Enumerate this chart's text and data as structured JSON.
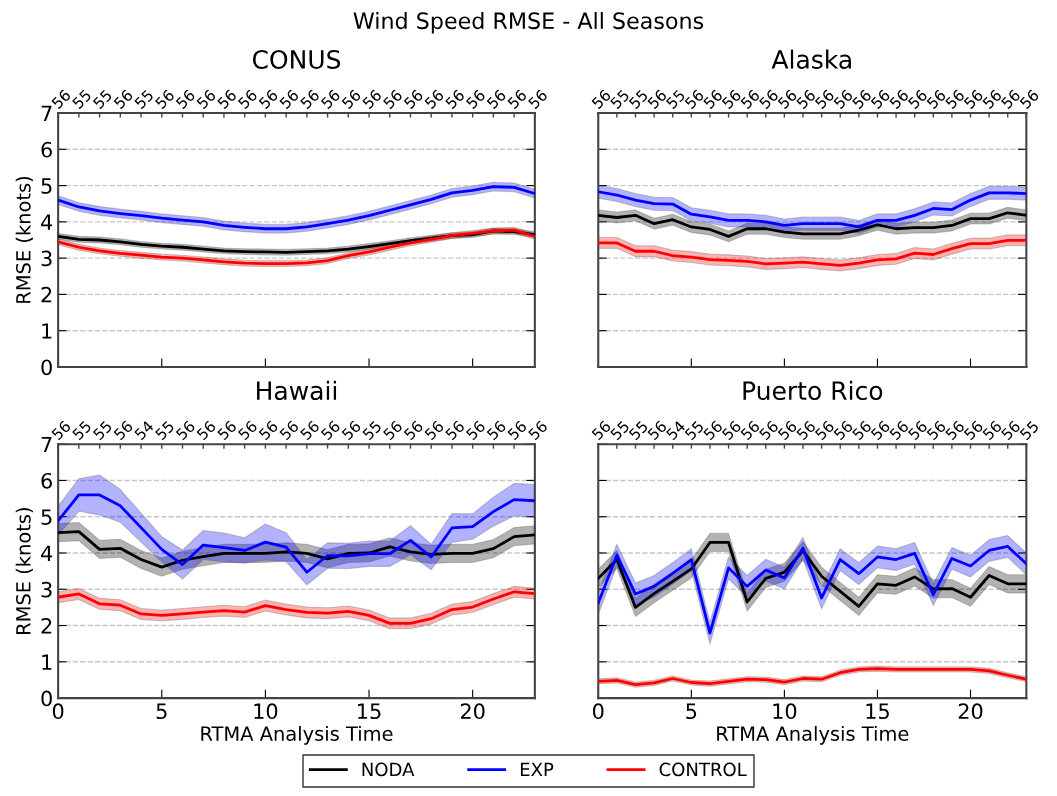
{
  "chart_data": [
    {
      "type": "line",
      "title": "CONUS",
      "ylabel": "RMSE (knots)",
      "x": [
        0,
        1,
        2,
        3,
        4,
        5,
        6,
        7,
        8,
        9,
        10,
        11,
        12,
        13,
        14,
        15,
        16,
        17,
        18,
        19,
        20,
        21,
        22,
        23
      ],
      "xlim": [
        0,
        23
      ],
      "xticks": [
        0,
        5,
        10,
        15,
        20
      ],
      "ylim": [
        0,
        7
      ],
      "yticks": [
        0,
        1,
        2,
        3,
        4,
        5,
        6,
        7
      ],
      "tick_labels": "y",
      "grid": "y",
      "annotations": [
        "Wind Speed RMSE - All Seasons",
        {
          "text": "56",
          "x": 0
        },
        {
          "text": "55",
          "x": 1
        },
        {
          "text": "55",
          "x": 2
        },
        {
          "text": "56",
          "x": 3
        },
        {
          "text": "55",
          "x": 4
        },
        {
          "text": "56",
          "x": 5
        },
        {
          "text": "56",
          "x": 6
        },
        {
          "text": "56",
          "x": 7
        },
        {
          "text": "56",
          "x": 8
        },
        {
          "text": "56",
          "x": 9
        },
        {
          "text": "56",
          "x": 10
        },
        {
          "text": "56",
          "x": 11
        },
        {
          "text": "56",
          "x": 12
        },
        {
          "text": "56",
          "x": 13
        },
        {
          "text": "56",
          "x": 14
        },
        {
          "text": "56",
          "x": 15
        },
        {
          "text": "56",
          "x": 16
        },
        {
          "text": "56",
          "x": 17
        },
        {
          "text": "56",
          "x": 18
        },
        {
          "text": "56",
          "x": 19
        },
        {
          "text": "56",
          "x": 20
        },
        {
          "text": "56",
          "x": 21
        },
        {
          "text": "56",
          "x": 22
        },
        {
          "text": "56",
          "x": 23
        }
      ],
      "series": [
        {
          "color": "#000000",
          "values": [
            3.6,
            3.52,
            3.5,
            3.45,
            3.38,
            3.33,
            3.3,
            3.25,
            3.2,
            3.18,
            3.17,
            3.16,
            3.18,
            3.2,
            3.25,
            3.32,
            3.4,
            3.48,
            3.55,
            3.62,
            3.65,
            3.75,
            3.73,
            3.65
          ],
          "lower": [
            3.52,
            3.44,
            3.42,
            3.37,
            3.3,
            3.25,
            3.22,
            3.17,
            3.12,
            3.1,
            3.09,
            3.08,
            3.1,
            3.12,
            3.17,
            3.24,
            3.32,
            3.4,
            3.47,
            3.54,
            3.57,
            3.67,
            3.65,
            3.57
          ],
          "upper": [
            3.68,
            3.6,
            3.58,
            3.53,
            3.46,
            3.41,
            3.38,
            3.33,
            3.28,
            3.26,
            3.25,
            3.24,
            3.26,
            3.28,
            3.33,
            3.4,
            3.48,
            3.56,
            3.63,
            3.7,
            3.73,
            3.83,
            3.81,
            3.73
          ]
        },
        {
          "color": "#0000ff",
          "values": [
            4.6,
            4.41,
            4.3,
            4.23,
            4.17,
            4.1,
            4.05,
            4.0,
            3.9,
            3.85,
            3.81,
            3.81,
            3.86,
            3.95,
            4.05,
            4.17,
            4.32,
            4.47,
            4.62,
            4.8,
            4.87,
            4.97,
            4.95,
            4.78
          ],
          "lower": [
            4.48,
            4.29,
            4.18,
            4.11,
            4.05,
            3.98,
            3.93,
            3.88,
            3.78,
            3.73,
            3.69,
            3.69,
            3.74,
            3.83,
            3.93,
            4.05,
            4.2,
            4.35,
            4.5,
            4.68,
            4.75,
            4.85,
            4.83,
            4.66
          ],
          "upper": [
            4.72,
            4.53,
            4.42,
            4.35,
            4.29,
            4.22,
            4.17,
            4.12,
            4.02,
            3.97,
            3.93,
            3.93,
            3.98,
            4.07,
            4.17,
            4.29,
            4.44,
            4.59,
            4.74,
            4.92,
            4.99,
            5.09,
            5.07,
            4.9
          ]
        },
        {
          "color": "#ff0000",
          "values": [
            3.45,
            3.3,
            3.2,
            3.13,
            3.08,
            3.03,
            3.0,
            2.95,
            2.9,
            2.86,
            2.85,
            2.85,
            2.87,
            2.93,
            3.07,
            3.17,
            3.3,
            3.42,
            3.52,
            3.62,
            3.68,
            3.75,
            3.77,
            3.6
          ],
          "lower": [
            3.37,
            3.22,
            3.12,
            3.05,
            3.0,
            2.95,
            2.92,
            2.87,
            2.82,
            2.78,
            2.77,
            2.77,
            2.79,
            2.85,
            2.99,
            3.09,
            3.22,
            3.34,
            3.44,
            3.54,
            3.6,
            3.67,
            3.69,
            3.52
          ],
          "upper": [
            3.53,
            3.38,
            3.28,
            3.21,
            3.16,
            3.11,
            3.08,
            3.03,
            2.98,
            2.94,
            2.93,
            2.93,
            2.95,
            3.01,
            3.15,
            3.25,
            3.38,
            3.5,
            3.6,
            3.7,
            3.76,
            3.83,
            3.85,
            3.68
          ]
        }
      ]
    },
    {
      "type": "line",
      "title": "Alaska",
      "x": [
        0,
        1,
        2,
        3,
        4,
        5,
        6,
        7,
        8,
        9,
        10,
        11,
        12,
        13,
        14,
        15,
        16,
        17,
        18,
        19,
        20,
        21,
        22,
        23
      ],
      "xlim": [
        0,
        23
      ],
      "xticks": [
        0,
        5,
        10,
        15,
        20
      ],
      "ylim": [
        0,
        7
      ],
      "yticks": [
        0,
        1,
        2,
        3,
        4,
        5,
        6,
        7
      ],
      "tick_labels": false,
      "grid": "y",
      "annotations": [
        {
          "text": "56",
          "x": 0
        },
        {
          "text": "55",
          "x": 1
        },
        {
          "text": "55",
          "x": 2
        },
        {
          "text": "56",
          "x": 3
        },
        {
          "text": "55",
          "x": 4
        },
        {
          "text": "56",
          "x": 5
        },
        {
          "text": "56",
          "x": 6
        },
        {
          "text": "56",
          "x": 7
        },
        {
          "text": "56",
          "x": 8
        },
        {
          "text": "56",
          "x": 9
        },
        {
          "text": "56",
          "x": 10
        },
        {
          "text": "56",
          "x": 11
        },
        {
          "text": "56",
          "x": 12
        },
        {
          "text": "56",
          "x": 13
        },
        {
          "text": "56",
          "x": 14
        },
        {
          "text": "56",
          "x": 15
        },
        {
          "text": "56",
          "x": 16
        },
        {
          "text": "56",
          "x": 17
        },
        {
          "text": "56",
          "x": 18
        },
        {
          "text": "56",
          "x": 19
        },
        {
          "text": "56",
          "x": 20
        },
        {
          "text": "56",
          "x": 21
        },
        {
          "text": "56",
          "x": 22
        },
        {
          "text": "56",
          "x": 23
        }
      ],
      "series": [
        {
          "color": "#000000",
          "values": [
            4.18,
            4.12,
            4.18,
            3.95,
            4.06,
            3.86,
            3.79,
            3.6,
            3.81,
            3.81,
            3.72,
            3.67,
            3.67,
            3.67,
            3.77,
            3.92,
            3.81,
            3.84,
            3.84,
            3.9,
            4.09,
            4.09,
            4.25,
            4.18
          ],
          "lower": [
            4.03,
            3.97,
            4.03,
            3.8,
            3.91,
            3.71,
            3.64,
            3.45,
            3.66,
            3.66,
            3.57,
            3.52,
            3.52,
            3.52,
            3.62,
            3.77,
            3.66,
            3.69,
            3.69,
            3.75,
            3.94,
            3.94,
            4.1,
            4.03
          ],
          "upper": [
            4.33,
            4.27,
            4.33,
            4.1,
            4.21,
            4.01,
            3.94,
            3.75,
            3.96,
            3.96,
            3.87,
            3.82,
            3.82,
            3.82,
            3.92,
            4.07,
            3.96,
            3.99,
            3.99,
            4.05,
            4.24,
            4.24,
            4.4,
            4.33
          ]
        },
        {
          "color": "#0000ff",
          "values": [
            4.83,
            4.74,
            4.6,
            4.5,
            4.49,
            4.21,
            4.14,
            4.04,
            4.04,
            4.0,
            3.9,
            3.95,
            3.95,
            3.95,
            3.86,
            4.04,
            4.04,
            4.18,
            4.37,
            4.34,
            4.6,
            4.8,
            4.8,
            4.78
          ],
          "lower": [
            4.65,
            4.56,
            4.42,
            4.32,
            4.31,
            4.03,
            3.96,
            3.86,
            3.86,
            3.82,
            3.72,
            3.77,
            3.77,
            3.77,
            3.68,
            3.86,
            3.86,
            4.0,
            4.19,
            4.16,
            4.42,
            4.62,
            4.62,
            4.6
          ],
          "upper": [
            5.01,
            4.92,
            4.78,
            4.68,
            4.67,
            4.39,
            4.32,
            4.22,
            4.22,
            4.18,
            4.08,
            4.13,
            4.13,
            4.13,
            4.04,
            4.22,
            4.22,
            4.36,
            4.55,
            4.52,
            4.78,
            4.98,
            4.98,
            4.96
          ]
        },
        {
          "color": "#ff0000",
          "values": [
            3.42,
            3.42,
            3.19,
            3.19,
            3.07,
            3.03,
            2.96,
            2.94,
            2.91,
            2.84,
            2.86,
            2.89,
            2.84,
            2.8,
            2.86,
            2.95,
            2.98,
            3.14,
            3.1,
            3.26,
            3.4,
            3.4,
            3.49,
            3.49
          ],
          "lower": [
            3.27,
            3.27,
            3.04,
            3.04,
            2.92,
            2.88,
            2.81,
            2.79,
            2.76,
            2.69,
            2.71,
            2.74,
            2.69,
            2.65,
            2.71,
            2.8,
            2.83,
            2.99,
            2.95,
            3.11,
            3.25,
            3.25,
            3.34,
            3.34
          ],
          "upper": [
            3.57,
            3.57,
            3.34,
            3.34,
            3.22,
            3.18,
            3.11,
            3.09,
            3.06,
            2.99,
            3.01,
            3.04,
            2.99,
            2.95,
            3.01,
            3.1,
            3.13,
            3.29,
            3.25,
            3.41,
            3.55,
            3.55,
            3.64,
            3.64
          ]
        }
      ]
    },
    {
      "type": "line",
      "title": "Hawaii",
      "xlabel": "RTMA Analysis Time",
      "ylabel": "RMSE (knots)",
      "x": [
        0,
        1,
        2,
        3,
        4,
        5,
        6,
        7,
        8,
        9,
        10,
        11,
        12,
        13,
        14,
        15,
        16,
        17,
        18,
        19,
        20,
        21,
        22,
        23
      ],
      "xlim": [
        0,
        23
      ],
      "xticks": [
        0,
        5,
        10,
        15,
        20
      ],
      "ylim": [
        0,
        7
      ],
      "yticks": [
        0,
        1,
        2,
        3,
        4,
        5,
        6,
        7
      ],
      "grid": "y",
      "annotations": [
        {
          "text": "56",
          "x": 0
        },
        {
          "text": "55",
          "x": 1
        },
        {
          "text": "55",
          "x": 2
        },
        {
          "text": "56",
          "x": 3
        },
        {
          "text": "54",
          "x": 4
        },
        {
          "text": "55",
          "x": 5
        },
        {
          "text": "56",
          "x": 6
        },
        {
          "text": "56",
          "x": 7
        },
        {
          "text": "56",
          "x": 8
        },
        {
          "text": "56",
          "x": 9
        },
        {
          "text": "56",
          "x": 10
        },
        {
          "text": "56",
          "x": 11
        },
        {
          "text": "56",
          "x": 12
        },
        {
          "text": "56",
          "x": 13
        },
        {
          "text": "56",
          "x": 14
        },
        {
          "text": "55",
          "x": 15
        },
        {
          "text": "56",
          "x": 16
        },
        {
          "text": "56",
          "x": 17
        },
        {
          "text": "56",
          "x": 18
        },
        {
          "text": "56",
          "x": 19
        },
        {
          "text": "56",
          "x": 20
        },
        {
          "text": "56",
          "x": 21
        },
        {
          "text": "56",
          "x": 22
        },
        {
          "text": "56",
          "x": 23
        }
      ],
      "series": [
        {
          "color": "#000000",
          "values": [
            4.56,
            4.59,
            4.1,
            4.13,
            3.82,
            3.61,
            3.8,
            3.9,
            3.99,
            3.99,
            3.99,
            4.03,
            3.99,
            3.84,
            3.99,
            4.0,
            4.17,
            4.03,
            3.96,
            3.99,
            3.99,
            4.12,
            4.45,
            4.5
          ],
          "lower": [
            4.31,
            4.34,
            3.85,
            3.88,
            3.57,
            3.36,
            3.55,
            3.65,
            3.74,
            3.74,
            3.74,
            3.78,
            3.74,
            3.59,
            3.74,
            3.75,
            3.92,
            3.78,
            3.71,
            3.74,
            3.74,
            3.87,
            4.2,
            4.25
          ],
          "upper": [
            4.81,
            4.84,
            4.35,
            4.38,
            4.07,
            3.86,
            4.05,
            4.15,
            4.24,
            4.24,
            4.24,
            4.28,
            4.24,
            4.09,
            4.24,
            4.25,
            4.42,
            4.28,
            4.21,
            4.24,
            4.24,
            4.37,
            4.7,
            4.75
          ]
        },
        {
          "color": "#0000ff",
          "values": [
            4.89,
            5.6,
            5.6,
            5.3,
            4.7,
            4.1,
            3.68,
            4.22,
            4.15,
            4.07,
            4.3,
            4.16,
            3.47,
            3.93,
            3.92,
            3.98,
            3.98,
            4.35,
            3.89,
            4.69,
            4.73,
            5.14,
            5.47,
            5.44
          ],
          "lower": [
            4.49,
            5.15,
            5.05,
            4.85,
            4.3,
            3.75,
            3.28,
            3.82,
            3.75,
            3.72,
            3.8,
            3.76,
            3.12,
            3.58,
            3.57,
            3.63,
            3.63,
            3.95,
            3.54,
            4.29,
            4.38,
            4.74,
            5.02,
            4.99
          ],
          "upper": [
            5.29,
            6.05,
            6.15,
            5.75,
            5.1,
            4.45,
            4.08,
            4.62,
            4.55,
            4.42,
            4.8,
            4.56,
            3.82,
            4.28,
            4.27,
            4.33,
            4.33,
            4.75,
            4.24,
            5.09,
            5.08,
            5.54,
            5.92,
            5.89
          ]
        },
        {
          "color": "#ff0000",
          "values": [
            2.78,
            2.87,
            2.6,
            2.56,
            2.32,
            2.28,
            2.32,
            2.37,
            2.41,
            2.37,
            2.55,
            2.44,
            2.36,
            2.34,
            2.39,
            2.28,
            2.06,
            2.06,
            2.19,
            2.44,
            2.51,
            2.73,
            2.93,
            2.88
          ],
          "lower": [
            2.63,
            2.72,
            2.45,
            2.41,
            2.17,
            2.13,
            2.17,
            2.22,
            2.26,
            2.22,
            2.4,
            2.29,
            2.21,
            2.19,
            2.24,
            2.13,
            1.91,
            1.91,
            2.04,
            2.29,
            2.36,
            2.58,
            2.78,
            2.73
          ],
          "upper": [
            2.93,
            3.02,
            2.75,
            2.71,
            2.47,
            2.43,
            2.47,
            2.52,
            2.56,
            2.52,
            2.7,
            2.59,
            2.51,
            2.49,
            2.54,
            2.43,
            2.21,
            2.21,
            2.34,
            2.59,
            2.66,
            2.88,
            3.08,
            3.03
          ]
        }
      ]
    },
    {
      "type": "line",
      "title": "Puerto Rico",
      "xlabel": "RTMA Analysis Time",
      "x": [
        0,
        1,
        2,
        3,
        4,
        5,
        6,
        7,
        8,
        9,
        10,
        11,
        12,
        13,
        14,
        15,
        16,
        17,
        18,
        19,
        20,
        21,
        22,
        23
      ],
      "xlim": [
        0,
        23
      ],
      "xticks": [
        0,
        5,
        10,
        15,
        20
      ],
      "ylim": [
        0,
        7
      ],
      "yticks": [
        0,
        1,
        2,
        3,
        4,
        5,
        6,
        7
      ],
      "tick_labels": "x",
      "grid": "y",
      "legend": "bottom",
      "annotations": [
        {
          "text": "56",
          "x": 0
        },
        {
          "text": "55",
          "x": 1
        },
        {
          "text": "55",
          "x": 2
        },
        {
          "text": "56",
          "x": 3
        },
        {
          "text": "54",
          "x": 4
        },
        {
          "text": "55",
          "x": 5
        },
        {
          "text": "56",
          "x": 6
        },
        {
          "text": "56",
          "x": 7
        },
        {
          "text": "56",
          "x": 8
        },
        {
          "text": "56",
          "x": 9
        },
        {
          "text": "56",
          "x": 10
        },
        {
          "text": "56",
          "x": 11
        },
        {
          "text": "56",
          "x": 12
        },
        {
          "text": "56",
          "x": 13
        },
        {
          "text": "56",
          "x": 14
        },
        {
          "text": "56",
          "x": 15
        },
        {
          "text": "56",
          "x": 16
        },
        {
          "text": "56",
          "x": 17
        },
        {
          "text": "56",
          "x": 18
        },
        {
          "text": "56",
          "x": 19
        },
        {
          "text": "56",
          "x": 20
        },
        {
          "text": "56",
          "x": 21
        },
        {
          "text": "56",
          "x": 22
        },
        {
          "text": "55",
          "x": 23
        }
      ],
      "series": [
        {
          "name": "NODA",
          "color": "#000000",
          "values": [
            3.3,
            3.82,
            2.5,
            2.88,
            3.22,
            3.56,
            4.29,
            4.29,
            2.65,
            3.3,
            3.47,
            4.06,
            3.36,
            2.94,
            2.53,
            3.15,
            3.11,
            3.34,
            3.01,
            3.02,
            2.78,
            3.38,
            3.15,
            3.15
          ],
          "lower": [
            3.05,
            3.57,
            2.25,
            2.63,
            2.97,
            3.31,
            4.04,
            4.04,
            2.4,
            3.05,
            3.22,
            3.81,
            3.11,
            2.69,
            2.28,
            2.9,
            2.86,
            3.09,
            2.76,
            2.77,
            2.53,
            3.13,
            2.9,
            2.9
          ],
          "upper": [
            3.55,
            4.07,
            2.75,
            3.13,
            3.47,
            3.81,
            4.54,
            4.54,
            2.9,
            3.55,
            3.72,
            4.31,
            3.61,
            3.19,
            2.78,
            3.4,
            3.36,
            3.59,
            3.26,
            3.27,
            3.03,
            3.63,
            3.4,
            3.4
          ]
        },
        {
          "name": "EXP",
          "color": "#0000ff",
          "values": [
            2.62,
            3.94,
            2.87,
            3.08,
            3.44,
            3.82,
            1.79,
            3.59,
            3.08,
            3.53,
            3.31,
            4.13,
            2.76,
            3.82,
            3.43,
            3.89,
            3.82,
            3.99,
            2.85,
            3.85,
            3.64,
            4.07,
            4.18,
            3.7
          ],
          "lower": [
            2.32,
            3.64,
            2.57,
            2.78,
            3.14,
            3.52,
            1.49,
            3.29,
            2.78,
            3.23,
            3.01,
            3.83,
            2.46,
            3.52,
            3.13,
            3.59,
            3.52,
            3.69,
            2.55,
            3.55,
            3.34,
            3.77,
            3.88,
            3.4
          ],
          "upper": [
            2.92,
            4.24,
            3.17,
            3.38,
            3.74,
            4.12,
            2.09,
            3.89,
            3.38,
            3.83,
            3.61,
            4.43,
            3.06,
            4.12,
            3.73,
            4.19,
            4.12,
            4.29,
            3.15,
            4.15,
            3.94,
            4.37,
            4.48,
            4.0
          ]
        },
        {
          "name": "CONTROL",
          "color": "#ff0000",
          "values": [
            0.46,
            0.49,
            0.37,
            0.42,
            0.54,
            0.43,
            0.4,
            0.46,
            0.52,
            0.51,
            0.44,
            0.54,
            0.52,
            0.7,
            0.79,
            0.81,
            0.79,
            0.79,
            0.79,
            0.79,
            0.79,
            0.75,
            0.63,
            0.52
          ],
          "lower": [
            0.39,
            0.42,
            0.3,
            0.35,
            0.47,
            0.36,
            0.33,
            0.39,
            0.45,
            0.44,
            0.37,
            0.47,
            0.45,
            0.63,
            0.72,
            0.74,
            0.72,
            0.72,
            0.72,
            0.72,
            0.72,
            0.68,
            0.56,
            0.45
          ],
          "upper": [
            0.53,
            0.56,
            0.44,
            0.49,
            0.61,
            0.5,
            0.47,
            0.53,
            0.59,
            0.58,
            0.51,
            0.61,
            0.59,
            0.77,
            0.86,
            0.88,
            0.86,
            0.86,
            0.86,
            0.86,
            0.86,
            0.82,
            0.7,
            0.59
          ]
        }
      ]
    }
  ]
}
